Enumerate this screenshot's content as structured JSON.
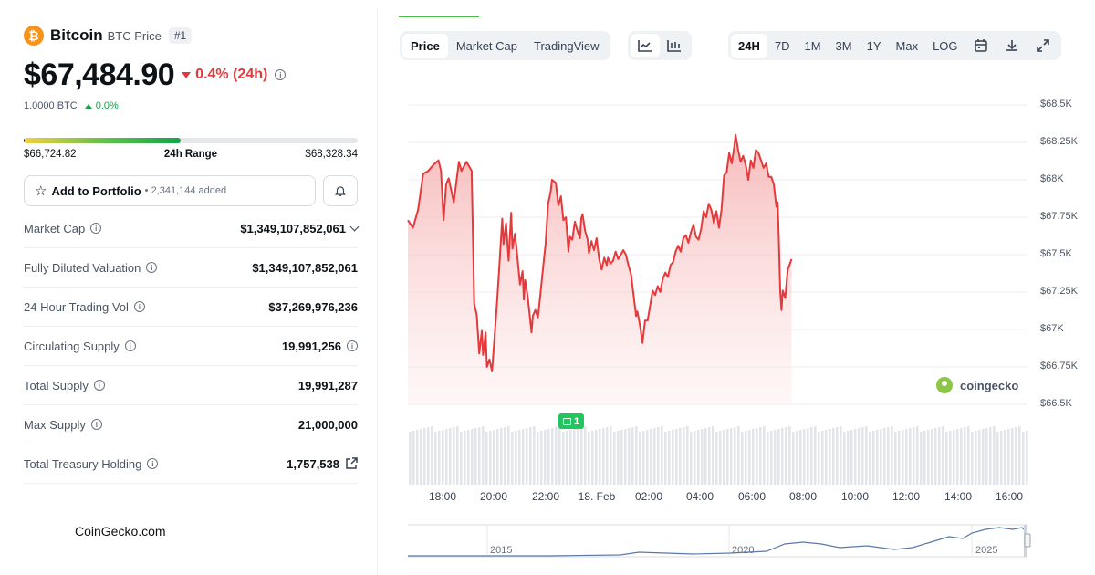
{
  "coin": {
    "logo_glyph": "₿",
    "name": "Bitcoin",
    "subtitle": "BTC Price",
    "rank": "#1",
    "price": "$67,484.90",
    "change_24h": "0.4% (24h)",
    "btc_amount": "1.0000 BTC",
    "btc_change": "0.0%",
    "colors": {
      "down": "#e03a3e",
      "up": "#16a34a",
      "brand": "#f7931a"
    }
  },
  "range": {
    "low": "$66,724.82",
    "label": "24h Range",
    "high": "$68,328.34",
    "current_position": 0.47
  },
  "portfolio": {
    "button_label": "Add to Portfolio",
    "added_text": "• 2,341,144 added",
    "star_icon": "star-icon",
    "bell_icon": "bell-icon"
  },
  "stats": [
    {
      "label": "Market Cap",
      "value": "$1,349,107,852,061",
      "extra": "chevron"
    },
    {
      "label": "Fully Diluted Valuation",
      "value": "$1,349,107,852,061",
      "extra": ""
    },
    {
      "label": "24 Hour Trading Vol",
      "value": "$37,269,976,236",
      "extra": ""
    },
    {
      "label": "Circulating Supply",
      "value": "19,991,256",
      "extra": "info"
    },
    {
      "label": "Total Supply",
      "value": "19,991,287",
      "extra": ""
    },
    {
      "label": "Max Supply",
      "value": "21,000,000",
      "extra": ""
    },
    {
      "label": "Total Treasury Holding",
      "value": "1,757,538",
      "extra": "external"
    }
  ],
  "footer": {
    "brand": "CoinGecko.com"
  },
  "chart_controls": {
    "tabs": [
      "Price",
      "Market Cap",
      "TradingView"
    ],
    "active_tab": "Price",
    "chart_types": [
      "line-chart-icon",
      "candlestick-icon"
    ],
    "periods": [
      "24H",
      "7D",
      "1M",
      "3M",
      "1Y",
      "Max",
      "LOG"
    ],
    "active_period": "24H",
    "tools": [
      "calendar-icon",
      "download-icon",
      "fullscreen-icon"
    ]
  },
  "chart_data": {
    "type": "area",
    "y_tick_labels": [
      "$68.5K",
      "$68.25K",
      "$68K",
      "$67.75K",
      "$67.5K",
      "$67.25K",
      "$67K",
      "$66.75K",
      "$66.5K"
    ],
    "ylim": [
      66500,
      68500
    ],
    "x_tick_labels": [
      "18:00",
      "20:00",
      "22:00",
      "18. Feb",
      "02:00",
      "04:00",
      "06:00",
      "08:00",
      "10:00",
      "12:00",
      "14:00",
      "16:00"
    ],
    "x_hours": [
      -0.5,
      23.8
    ],
    "series": [
      {
        "values": [
          [
            -0.5,
            67730
          ],
          [
            -0.3,
            67680
          ],
          [
            -0.1,
            67800
          ],
          [
            0.1,
            68040
          ],
          [
            0.3,
            68060
          ],
          [
            0.5,
            68100
          ],
          [
            0.7,
            68130
          ],
          [
            0.8,
            68060
          ],
          [
            0.9,
            67730
          ],
          [
            1.0,
            67970
          ],
          [
            1.1,
            68010
          ],
          [
            1.3,
            67850
          ],
          [
            1.5,
            68120
          ],
          [
            1.6,
            68060
          ],
          [
            1.8,
            68120
          ],
          [
            1.9,
            68090
          ],
          [
            2.0,
            68060
          ],
          [
            2.05,
            67620
          ],
          [
            2.1,
            67170
          ],
          [
            2.2,
            67100
          ],
          [
            2.3,
            66840
          ],
          [
            2.4,
            66990
          ],
          [
            2.45,
            66830
          ],
          [
            2.55,
            66980
          ],
          [
            2.6,
            66750
          ],
          [
            2.7,
            66800
          ],
          [
            2.8,
            66720
          ],
          [
            2.9,
            66950
          ],
          [
            3.0,
            67190
          ],
          [
            3.1,
            67460
          ],
          [
            3.2,
            67740
          ],
          [
            3.25,
            67570
          ],
          [
            3.35,
            67710
          ],
          [
            3.45,
            67460
          ],
          [
            3.55,
            67780
          ],
          [
            3.6,
            67540
          ],
          [
            3.7,
            67640
          ],
          [
            3.8,
            67470
          ],
          [
            3.9,
            67300
          ],
          [
            4.0,
            67390
          ],
          [
            4.05,
            67200
          ],
          [
            4.1,
            67330
          ],
          [
            4.2,
            67220
          ],
          [
            4.35,
            66980
          ],
          [
            4.4,
            67090
          ],
          [
            4.5,
            67130
          ],
          [
            4.6,
            67080
          ],
          [
            4.7,
            67240
          ],
          [
            4.8,
            67410
          ],
          [
            4.9,
            67570
          ],
          [
            5.0,
            67840
          ],
          [
            5.1,
            67920
          ],
          [
            5.15,
            68000
          ],
          [
            5.3,
            67980
          ],
          [
            5.4,
            67830
          ],
          [
            5.5,
            67890
          ],
          [
            5.6,
            67730
          ],
          [
            5.7,
            67750
          ],
          [
            5.8,
            67520
          ],
          [
            5.85,
            67620
          ],
          [
            5.95,
            67600
          ],
          [
            6.05,
            67720
          ],
          [
            6.15,
            67660
          ],
          [
            6.25,
            67610
          ],
          [
            6.3,
            67740
          ],
          [
            6.35,
            67770
          ],
          [
            6.45,
            67660
          ],
          [
            6.55,
            67600
          ],
          [
            6.6,
            67510
          ],
          [
            6.7,
            67590
          ],
          [
            6.8,
            67530
          ],
          [
            6.9,
            67610
          ],
          [
            7.0,
            67470
          ],
          [
            7.1,
            67400
          ],
          [
            7.2,
            67480
          ],
          [
            7.3,
            67430
          ],
          [
            7.35,
            67480
          ],
          [
            7.45,
            67440
          ],
          [
            7.55,
            67460
          ],
          [
            7.65,
            67520
          ],
          [
            7.75,
            67470
          ],
          [
            7.85,
            67500
          ],
          [
            7.95,
            67530
          ],
          [
            8.05,
            67500
          ],
          [
            8.15,
            67430
          ],
          [
            8.25,
            67370
          ],
          [
            8.35,
            67230
          ],
          [
            8.45,
            67090
          ],
          [
            8.5,
            67120
          ],
          [
            8.6,
            67030
          ],
          [
            8.7,
            66910
          ],
          [
            8.8,
            67060
          ],
          [
            8.9,
            67060
          ],
          [
            9.0,
            67160
          ],
          [
            9.1,
            67260
          ],
          [
            9.2,
            67230
          ],
          [
            9.3,
            67290
          ],
          [
            9.4,
            67250
          ],
          [
            9.5,
            67340
          ],
          [
            9.6,
            67380
          ],
          [
            9.7,
            67350
          ],
          [
            9.8,
            67430
          ],
          [
            9.9,
            67450
          ],
          [
            10.0,
            67520
          ],
          [
            10.1,
            67560
          ],
          [
            10.2,
            67520
          ],
          [
            10.3,
            67610
          ],
          [
            10.4,
            67630
          ],
          [
            10.5,
            67580
          ],
          [
            10.6,
            67650
          ],
          [
            10.7,
            67700
          ],
          [
            10.8,
            67620
          ],
          [
            10.9,
            67600
          ],
          [
            11.0,
            67670
          ],
          [
            11.1,
            67790
          ],
          [
            11.2,
            67750
          ],
          [
            11.3,
            67840
          ],
          [
            11.4,
            67800
          ],
          [
            11.5,
            67710
          ],
          [
            11.6,
            67790
          ],
          [
            11.7,
            67680
          ],
          [
            11.8,
            67800
          ],
          [
            11.9,
            68030
          ],
          [
            12.0,
            68050
          ],
          [
            12.1,
            68180
          ],
          [
            12.2,
            68110
          ],
          [
            12.3,
            68220
          ],
          [
            12.35,
            68300
          ],
          [
            12.45,
            68200
          ],
          [
            12.55,
            68120
          ],
          [
            12.65,
            68160
          ],
          [
            12.75,
            68100
          ],
          [
            12.85,
            68000
          ],
          [
            12.95,
            68130
          ],
          [
            13.05,
            68080
          ],
          [
            13.15,
            68200
          ],
          [
            13.25,
            68180
          ],
          [
            13.35,
            68130
          ],
          [
            13.45,
            68080
          ],
          [
            13.55,
            68110
          ],
          [
            13.65,
            68020
          ],
          [
            13.75,
            68020
          ],
          [
            13.85,
            67970
          ],
          [
            13.95,
            67820
          ],
          [
            14.0,
            67850
          ],
          [
            14.05,
            67580
          ],
          [
            14.1,
            67260
          ],
          [
            14.15,
            67130
          ],
          [
            14.2,
            67260
          ],
          [
            14.3,
            67210
          ],
          [
            14.4,
            67400
          ],
          [
            14.55,
            67470
          ]
        ]
      }
    ],
    "volume_label": "",
    "event_badge": "1",
    "navigator": {
      "x_tick_labels": [
        "2015",
        "2020",
        "2025"
      ]
    }
  }
}
